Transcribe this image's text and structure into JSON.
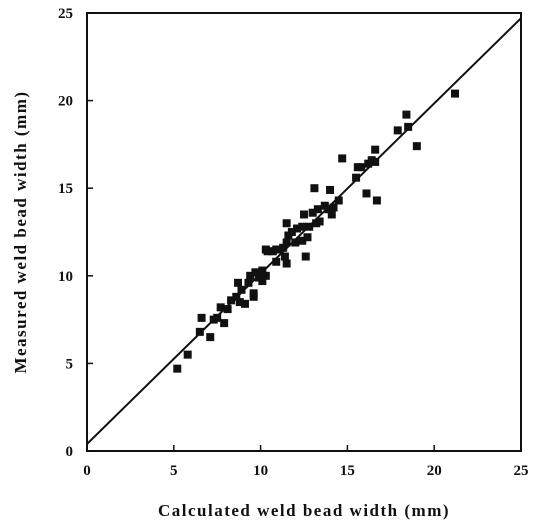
{
  "chart_data": {
    "type": "scatter",
    "xlabel": "Calculated weld bead width (mm)",
    "ylabel": "Measured weld bead width (mm)",
    "xlim": [
      0,
      25
    ],
    "ylim": [
      0,
      25
    ],
    "xticks": [
      0,
      5,
      10,
      15,
      20,
      25
    ],
    "yticks": [
      0,
      5,
      10,
      15,
      20,
      25
    ],
    "color": "#111111",
    "points": {
      "x": [
        5.2,
        5.8,
        6.5,
        6.6,
        7.1,
        7.3,
        7.5,
        7.7,
        7.9,
        8.1,
        8.3,
        8.6,
        8.7,
        8.8,
        8.9,
        9.1,
        9.3,
        9.4,
        9.6,
        9.6,
        9.7,
        9.9,
        10.0,
        10.1,
        10.1,
        10.3,
        10.3,
        10.4,
        10.7,
        10.9,
        10.9,
        11.1,
        11.3,
        11.4,
        11.5,
        11.5,
        11.6,
        11.5,
        11.8,
        12.0,
        12.1,
        12.4,
        12.4,
        12.5,
        12.6,
        12.7,
        12.8,
        13.0,
        13.1,
        13.2,
        13.3,
        13.4,
        13.7,
        13.9,
        14.0,
        14.1,
        14.2,
        14.5,
        14.7,
        15.5,
        15.6,
        15.8,
        16.1,
        16.2,
        16.4,
        16.6,
        16.6,
        16.7,
        17.9,
        18.4,
        18.5,
        19.0,
        21.2
      ],
      "y": [
        4.7,
        5.5,
        6.8,
        7.6,
        6.5,
        7.5,
        7.6,
        8.2,
        7.3,
        8.1,
        8.6,
        8.8,
        9.6,
        8.5,
        9.2,
        8.4,
        9.6,
        10.0,
        9.0,
        8.8,
        10.2,
        9.9,
        10.0,
        9.7,
        10.3,
        10.0,
        11.5,
        11.4,
        11.4,
        11.5,
        10.8,
        11.5,
        11.6,
        11.1,
        10.7,
        11.9,
        12.3,
        13.0,
        12.5,
        11.9,
        12.7,
        12.0,
        12.8,
        13.5,
        11.1,
        12.2,
        12.8,
        13.6,
        15.0,
        13.0,
        13.8,
        13.1,
        14.0,
        13.8,
        14.9,
        13.5,
        13.9,
        14.3,
        16.7,
        15.6,
        16.2,
        16.2,
        14.7,
        16.4,
        16.6,
        16.5,
        17.2,
        14.3,
        18.3,
        19.2,
        18.5,
        17.4,
        20.4
      ]
    },
    "line": {
      "x": [
        0,
        25
      ],
      "y": [
        0.4,
        24.7
      ]
    }
  }
}
